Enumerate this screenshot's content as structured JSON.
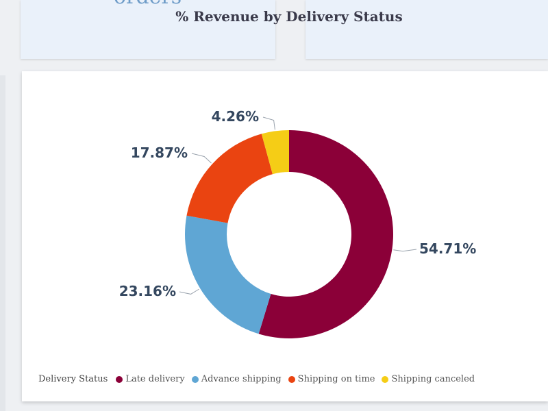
{
  "kpi": {
    "left_text": "orders"
  },
  "chart_data": {
    "type": "pie",
    "title": "% Revenue by Delivery Status",
    "legend_title": "Delivery Status",
    "legend_position": "bottom",
    "categories": [
      "Late delivery",
      "Advance shipping",
      "Shipping on time",
      "Shipping canceled"
    ],
    "values": [
      54.71,
      23.16,
      17.87,
      4.26
    ],
    "labels": [
      "54.71%",
      "23.16%",
      "17.87%",
      "4.26%"
    ],
    "colors": [
      "#8b0038",
      "#5fa6d4",
      "#ea4411",
      "#f5cd16"
    ]
  }
}
